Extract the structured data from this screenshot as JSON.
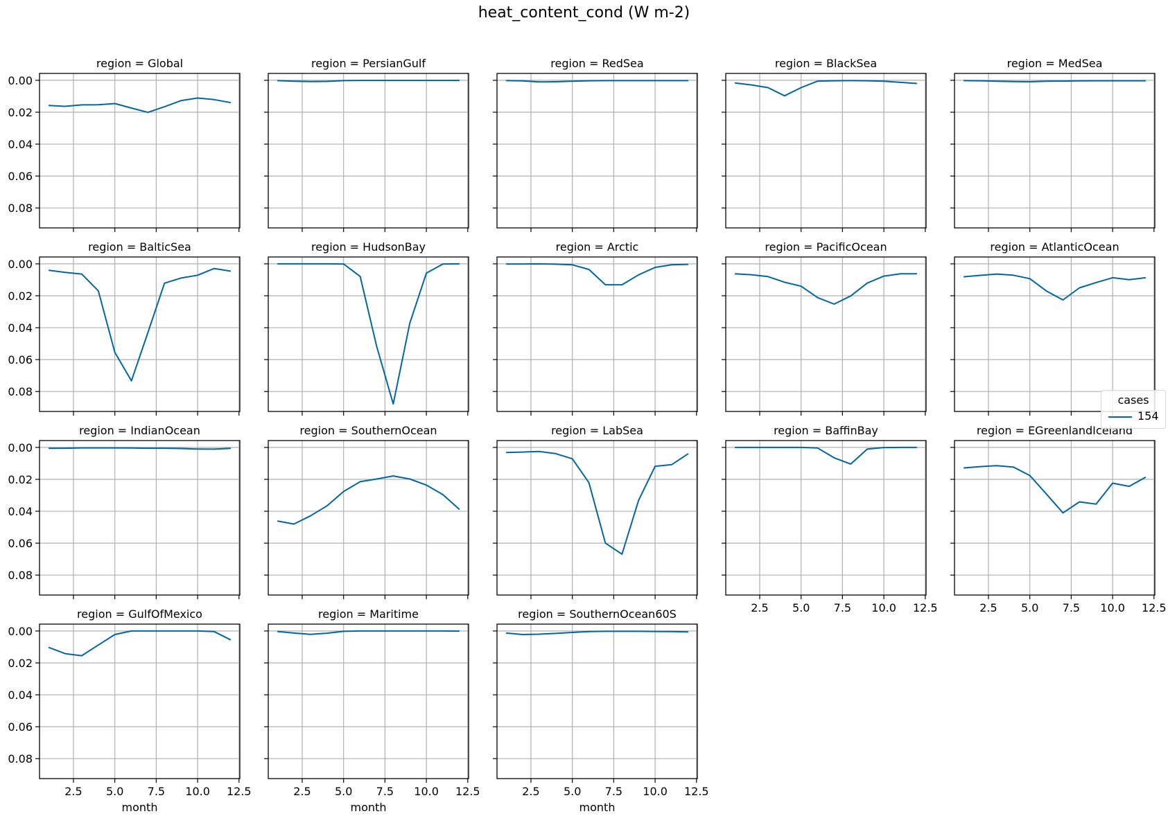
{
  "figure": {
    "title": "heat_content_cond (W m-2)",
    "line_color": "#0066a1",
    "grid_color": "#b0b0b0"
  },
  "legend": {
    "title": "cases",
    "entries": [
      {
        "label": "154",
        "color": "#0066a1"
      }
    ]
  },
  "chart_data": {
    "type": "line",
    "title": "heat_content_cond (W m-2)",
    "facet_by": "region",
    "xlabel": "month",
    "ylabel": "",
    "x": [
      1,
      2,
      3,
      4,
      5,
      6,
      7,
      8,
      9,
      10,
      11,
      12
    ],
    "xlim": [
      0.45,
      12.55
    ],
    "xticks": [
      2.5,
      5.0,
      7.5,
      10.0,
      12.5
    ],
    "xtick_labels": [
      "2.5",
      "5.0",
      "7.5",
      "10.0",
      "12.5"
    ],
    "ylim": [
      0.0925,
      -0.0043
    ],
    "y_inverted": true,
    "yticks": [
      0.0,
      0.02,
      0.04,
      0.06,
      0.08
    ],
    "ytick_labels": [
      "0.00",
      "0.02",
      "0.04",
      "0.06",
      "0.08"
    ],
    "grid": true,
    "legend_title": "cases",
    "legend_position": "right",
    "panels": [
      {
        "title": "region = Global",
        "series": [
          {
            "name": "154",
            "values": [
              0.0158,
              0.0163,
              0.0154,
              0.0153,
              0.0146,
              0.0174,
              0.0201,
              0.0166,
              0.0127,
              0.0111,
              0.0121,
              0.014
            ]
          }
        ]
      },
      {
        "title": "region = PersianGulf",
        "series": [
          {
            "name": "154",
            "values": [
              0.0002,
              0.0006,
              0.0008,
              0.0007,
              0.0002,
              0.0001,
              0.0001,
              0.0001,
              0.0001,
              0.0001,
              0.0001,
              0.0001
            ]
          }
        ]
      },
      {
        "title": "region = RedSea",
        "series": [
          {
            "name": "154",
            "values": [
              0.0002,
              0.0004,
              0.001,
              0.0009,
              0.0006,
              0.0003,
              0.0002,
              0.0002,
              0.0002,
              0.0002,
              0.0002,
              0.0002
            ]
          }
        ]
      },
      {
        "title": "region = BlackSea",
        "series": [
          {
            "name": "154",
            "values": [
              0.0017,
              0.0029,
              0.0046,
              0.0097,
              0.0046,
              0.0005,
              0.0003,
              0.0002,
              0.0003,
              0.0006,
              0.0013,
              0.002
            ]
          }
        ]
      },
      {
        "title": "region = MedSea",
        "series": [
          {
            "name": "154",
            "values": [
              0.0002,
              0.0003,
              0.0006,
              0.0008,
              0.0009,
              0.0006,
              0.0005,
              0.0004,
              0.0003,
              0.0003,
              0.0003,
              0.0003
            ]
          }
        ]
      },
      {
        "title": "region = BalticSea",
        "series": [
          {
            "name": "154",
            "values": [
              0.004,
              0.0054,
              0.0064,
              0.0169,
              0.0555,
              0.0733,
              0.043,
              0.0121,
              0.0089,
              0.0071,
              0.0029,
              0.0046
            ]
          }
        ]
      },
      {
        "title": "region = HudsonBay",
        "series": [
          {
            "name": "154",
            "values": [
              0.0,
              0.0,
              0.0,
              0.0,
              0.0001,
              0.0079,
              0.0517,
              0.0878,
              0.0372,
              0.0058,
              0.0001,
              0.0
            ]
          }
        ]
      },
      {
        "title": "region = Arctic",
        "series": [
          {
            "name": "154",
            "values": [
              0.0001,
              0.0001,
              0.0,
              0.0002,
              0.0006,
              0.0035,
              0.0131,
              0.0131,
              0.0069,
              0.0022,
              0.0006,
              0.0003
            ]
          }
        ]
      },
      {
        "title": "region = PacificOcean",
        "series": [
          {
            "name": "154",
            "values": [
              0.0062,
              0.0068,
              0.008,
              0.0115,
              0.014,
              0.0212,
              0.0252,
              0.0201,
              0.012,
              0.0077,
              0.0062,
              0.0062
            ]
          }
        ]
      },
      {
        "title": "region = AtlanticOcean",
        "series": [
          {
            "name": "154",
            "values": [
              0.0081,
              0.0072,
              0.0064,
              0.0071,
              0.0093,
              0.017,
              0.0226,
              0.015,
              0.0117,
              0.0087,
              0.0099,
              0.0087
            ]
          }
        ]
      },
      {
        "title": "region = IndianOcean",
        "series": [
          {
            "name": "154",
            "values": [
              0.0006,
              0.0005,
              0.0003,
              0.0003,
              0.0003,
              0.0004,
              0.0005,
              0.0005,
              0.0007,
              0.001,
              0.0011,
              0.0006
            ]
          }
        ]
      },
      {
        "title": "region = SouthernOcean",
        "series": [
          {
            "name": "154",
            "values": [
              0.0461,
              0.048,
              0.0429,
              0.0366,
              0.0276,
              0.0215,
              0.0198,
              0.0179,
              0.0198,
              0.0236,
              0.0296,
              0.0389
            ]
          }
        ]
      },
      {
        "title": "region = LabSea",
        "series": [
          {
            "name": "154",
            "values": [
              0.0032,
              0.0029,
              0.0025,
              0.0039,
              0.0071,
              0.0221,
              0.06,
              0.0669,
              0.0332,
              0.0118,
              0.0108,
              0.0039
            ]
          }
        ]
      },
      {
        "title": "region = BaffinBay",
        "series": [
          {
            "name": "154",
            "values": [
              0.0,
              0.0,
              0.0,
              0.0,
              0.0,
              0.0004,
              0.0065,
              0.0104,
              0.001,
              0.0001,
              0.0,
              0.0
            ]
          }
        ]
      },
      {
        "title": "region = EGreenlandIceland",
        "series": [
          {
            "name": "154",
            "values": [
              0.0129,
              0.012,
              0.0114,
              0.0123,
              0.0176,
              0.0292,
              0.041,
              0.0341,
              0.0355,
              0.0224,
              0.0244,
              0.0186
            ]
          }
        ]
      },
      {
        "title": "region = GulfOfMexico",
        "series": [
          {
            "name": "154",
            "values": [
              0.0103,
              0.0142,
              0.0155,
              0.0088,
              0.0022,
              0.0,
              0.0,
              0.0,
              0.0,
              0.0,
              0.0004,
              0.0056
            ]
          }
        ]
      },
      {
        "title": "region = Maritime",
        "series": [
          {
            "name": "154",
            "values": [
              0.0003,
              0.0013,
              0.0021,
              0.0014,
              0.0002,
              0.0,
              0.0,
              0.0,
              0.0,
              0.0,
              0.0,
              0.0001
            ]
          }
        ]
      },
      {
        "title": "region = SouthernOcean60S",
        "series": [
          {
            "name": "154",
            "values": [
              0.0013,
              0.0022,
              0.002,
              0.0015,
              0.0009,
              0.0004,
              0.0002,
              0.0002,
              0.0002,
              0.0003,
              0.0004,
              0.0006
            ]
          }
        ]
      }
    ]
  }
}
